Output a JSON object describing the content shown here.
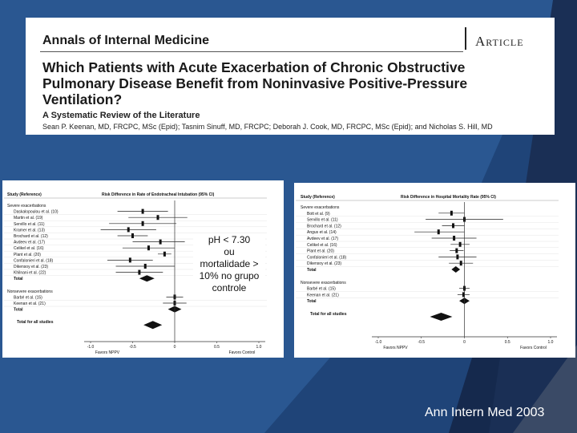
{
  "header": {
    "journal": "Annals of Internal Medicine",
    "section": "Article",
    "title": "Which Patients with Acute Exacerbation of Chronic Obstructive Pulmonary Disease Benefit from Noninvasive Positive-Pressure Ventilation?",
    "subtitle": "A Systematic Review of the Literature",
    "authors": "Sean P. Keenan, MD, FRCPC, MSc (Epid); Tasnim Sinuff, MD, FRCPC; Deborah J. Cook, MD, FRCPC, MSc (Epid); and Nicholas S. Hill, MD"
  },
  "annotation": {
    "line1": "pH < 7.30",
    "line2": "ou",
    "line3": "mortalidade >",
    "line4": "10% no grupo",
    "line5": "controle"
  },
  "citation": "Ann Intern Med 2003",
  "colors": {
    "background": "#15294d",
    "accent": "#2b5a93",
    "panel": "#ffffff",
    "ink": "#111111"
  },
  "chart_data": [
    {
      "type": "forest",
      "col_study": "Study (Reference)",
      "col_effect": "Risk Difference in Rate of Endotracheal Intubation (95% CI)",
      "xlim": [
        -1.0,
        1.0
      ],
      "ticks": [
        -1.0,
        -0.5,
        0,
        0.5,
        1.0
      ],
      "tick_labels": [
        "-1.0",
        "-0.5",
        "0",
        "0.5",
        "1.0"
      ],
      "favors_left": "Favors NPPV",
      "favors_right": "Favors Control",
      "rows": [
        {
          "label": "Severe exacerbations",
          "kind": "header"
        },
        {
          "label": "Daskalopoulou et al. (10)",
          "kind": "study",
          "est": -0.38,
          "lo": -0.68,
          "hi": -0.08
        },
        {
          "label": "Martin et al. (19)",
          "kind": "study",
          "est": -0.2,
          "lo": -0.55,
          "hi": 0.15
        },
        {
          "label": "Servillo et al. (11)",
          "kind": "study",
          "est": -0.38,
          "lo": -0.78,
          "hi": 0.02
        },
        {
          "label": "Kramer et al. (13)",
          "kind": "study",
          "est": -0.55,
          "lo": -0.88,
          "hi": -0.22
        },
        {
          "label": "Brochard et al. (12)",
          "kind": "study",
          "est": -0.5,
          "lo": -0.68,
          "hi": -0.32
        },
        {
          "label": "Avdeev et al. (17)",
          "kind": "study",
          "est": -0.17,
          "lo": -0.5,
          "hi": 0.12
        },
        {
          "label": "Celikel et al. (16)",
          "kind": "study",
          "est": -0.31,
          "lo": -0.62,
          "hi": 0.0
        },
        {
          "label": "Plant et al. (20)",
          "kind": "study",
          "est": -0.12,
          "lo": -0.2,
          "hi": -0.04
        },
        {
          "label": "Confalonieri et al. (18)",
          "kind": "study",
          "est": -0.53,
          "lo": -0.8,
          "hi": -0.26
        },
        {
          "label": "Dikensoy et al. (23)",
          "kind": "study",
          "est": -0.35,
          "lo": -0.7,
          "hi": 0.0
        },
        {
          "label": "Khilnani et al. (22)",
          "kind": "study",
          "est": -0.42,
          "lo": -0.7,
          "hi": -0.14
        },
        {
          "label": "Total",
          "kind": "pooled",
          "est": -0.33,
          "lo": -0.42,
          "hi": -0.24
        },
        {
          "label": "",
          "kind": "gap"
        },
        {
          "label": "Nonsevere exacerbations",
          "kind": "header"
        },
        {
          "label": "Barbé et al. (15)",
          "kind": "study",
          "est": 0.0,
          "lo": -0.1,
          "hi": 0.1
        },
        {
          "label": "Keenan et al. (21)",
          "kind": "study",
          "est": 0.0,
          "lo": -0.14,
          "hi": 0.14
        },
        {
          "label": "Total",
          "kind": "pooled",
          "est": 0.0,
          "lo": -0.08,
          "hi": 0.08
        },
        {
          "label": "",
          "kind": "gap"
        },
        {
          "label": "Total for all studies",
          "kind": "pooled",
          "est": -0.26,
          "lo": -0.37,
          "hi": -0.15
        }
      ]
    },
    {
      "type": "forest",
      "col_study": "Study (Reference)",
      "col_effect": "Risk Difference in Hospital Mortality Rate (95% CI)",
      "xlim": [
        -1.0,
        1.0
      ],
      "ticks": [
        -1.0,
        -0.5,
        0,
        0.5,
        1.0
      ],
      "tick_labels": [
        "-1.0",
        "-0.5",
        "0",
        "0.5",
        "1.0"
      ],
      "favors_left": "Favors NPPV",
      "favors_right": "Favors Control",
      "rows": [
        {
          "label": "Severe exacerbations",
          "kind": "header"
        },
        {
          "label": "Bott et al. (9)",
          "kind": "study",
          "est": -0.15,
          "lo": -0.3,
          "hi": 0.0
        },
        {
          "label": "Servillo et al. (11)",
          "kind": "study",
          "est": 0.0,
          "lo": -0.45,
          "hi": 0.45
        },
        {
          "label": "Brochard et al. (12)",
          "kind": "study",
          "est": -0.13,
          "lo": -0.26,
          "hi": 0.0
        },
        {
          "label": "Angus et al. (14)",
          "kind": "study",
          "est": -0.3,
          "lo": -0.58,
          "hi": 0.0
        },
        {
          "label": "Avdeev et al. (17)",
          "kind": "study",
          "est": -0.12,
          "lo": -0.38,
          "hi": 0.14
        },
        {
          "label": "Celikel et al. (16)",
          "kind": "study",
          "est": -0.05,
          "lo": -0.16,
          "hi": 0.06
        },
        {
          "label": "Plant et al. (20)",
          "kind": "study",
          "est": -0.09,
          "lo": -0.17,
          "hi": -0.01
        },
        {
          "label": "Confalonieri et al. (18)",
          "kind": "study",
          "est": -0.08,
          "lo": -0.3,
          "hi": 0.14
        },
        {
          "label": "Dikensoy et al. (23)",
          "kind": "study",
          "est": -0.04,
          "lo": -0.18,
          "hi": 0.1
        },
        {
          "label": "Total",
          "kind": "pooled",
          "est": -0.1,
          "lo": -0.15,
          "hi": -0.05
        },
        {
          "label": "",
          "kind": "gap"
        },
        {
          "label": "Nonsevere exacerbations",
          "kind": "header"
        },
        {
          "label": "Barbé et al. (15)",
          "kind": "study",
          "est": 0.0,
          "lo": -0.06,
          "hi": 0.06
        },
        {
          "label": "Keenan et al. (21)",
          "kind": "study",
          "est": -0.01,
          "lo": -0.08,
          "hi": 0.06
        },
        {
          "label": "Total",
          "kind": "pooled",
          "est": 0.0,
          "lo": -0.06,
          "hi": 0.06
        },
        {
          "label": "",
          "kind": "gap"
        },
        {
          "label": "Total for all studies",
          "kind": "pooled",
          "est": -0.27,
          "lo": -0.4,
          "hi": -0.14
        }
      ]
    }
  ]
}
